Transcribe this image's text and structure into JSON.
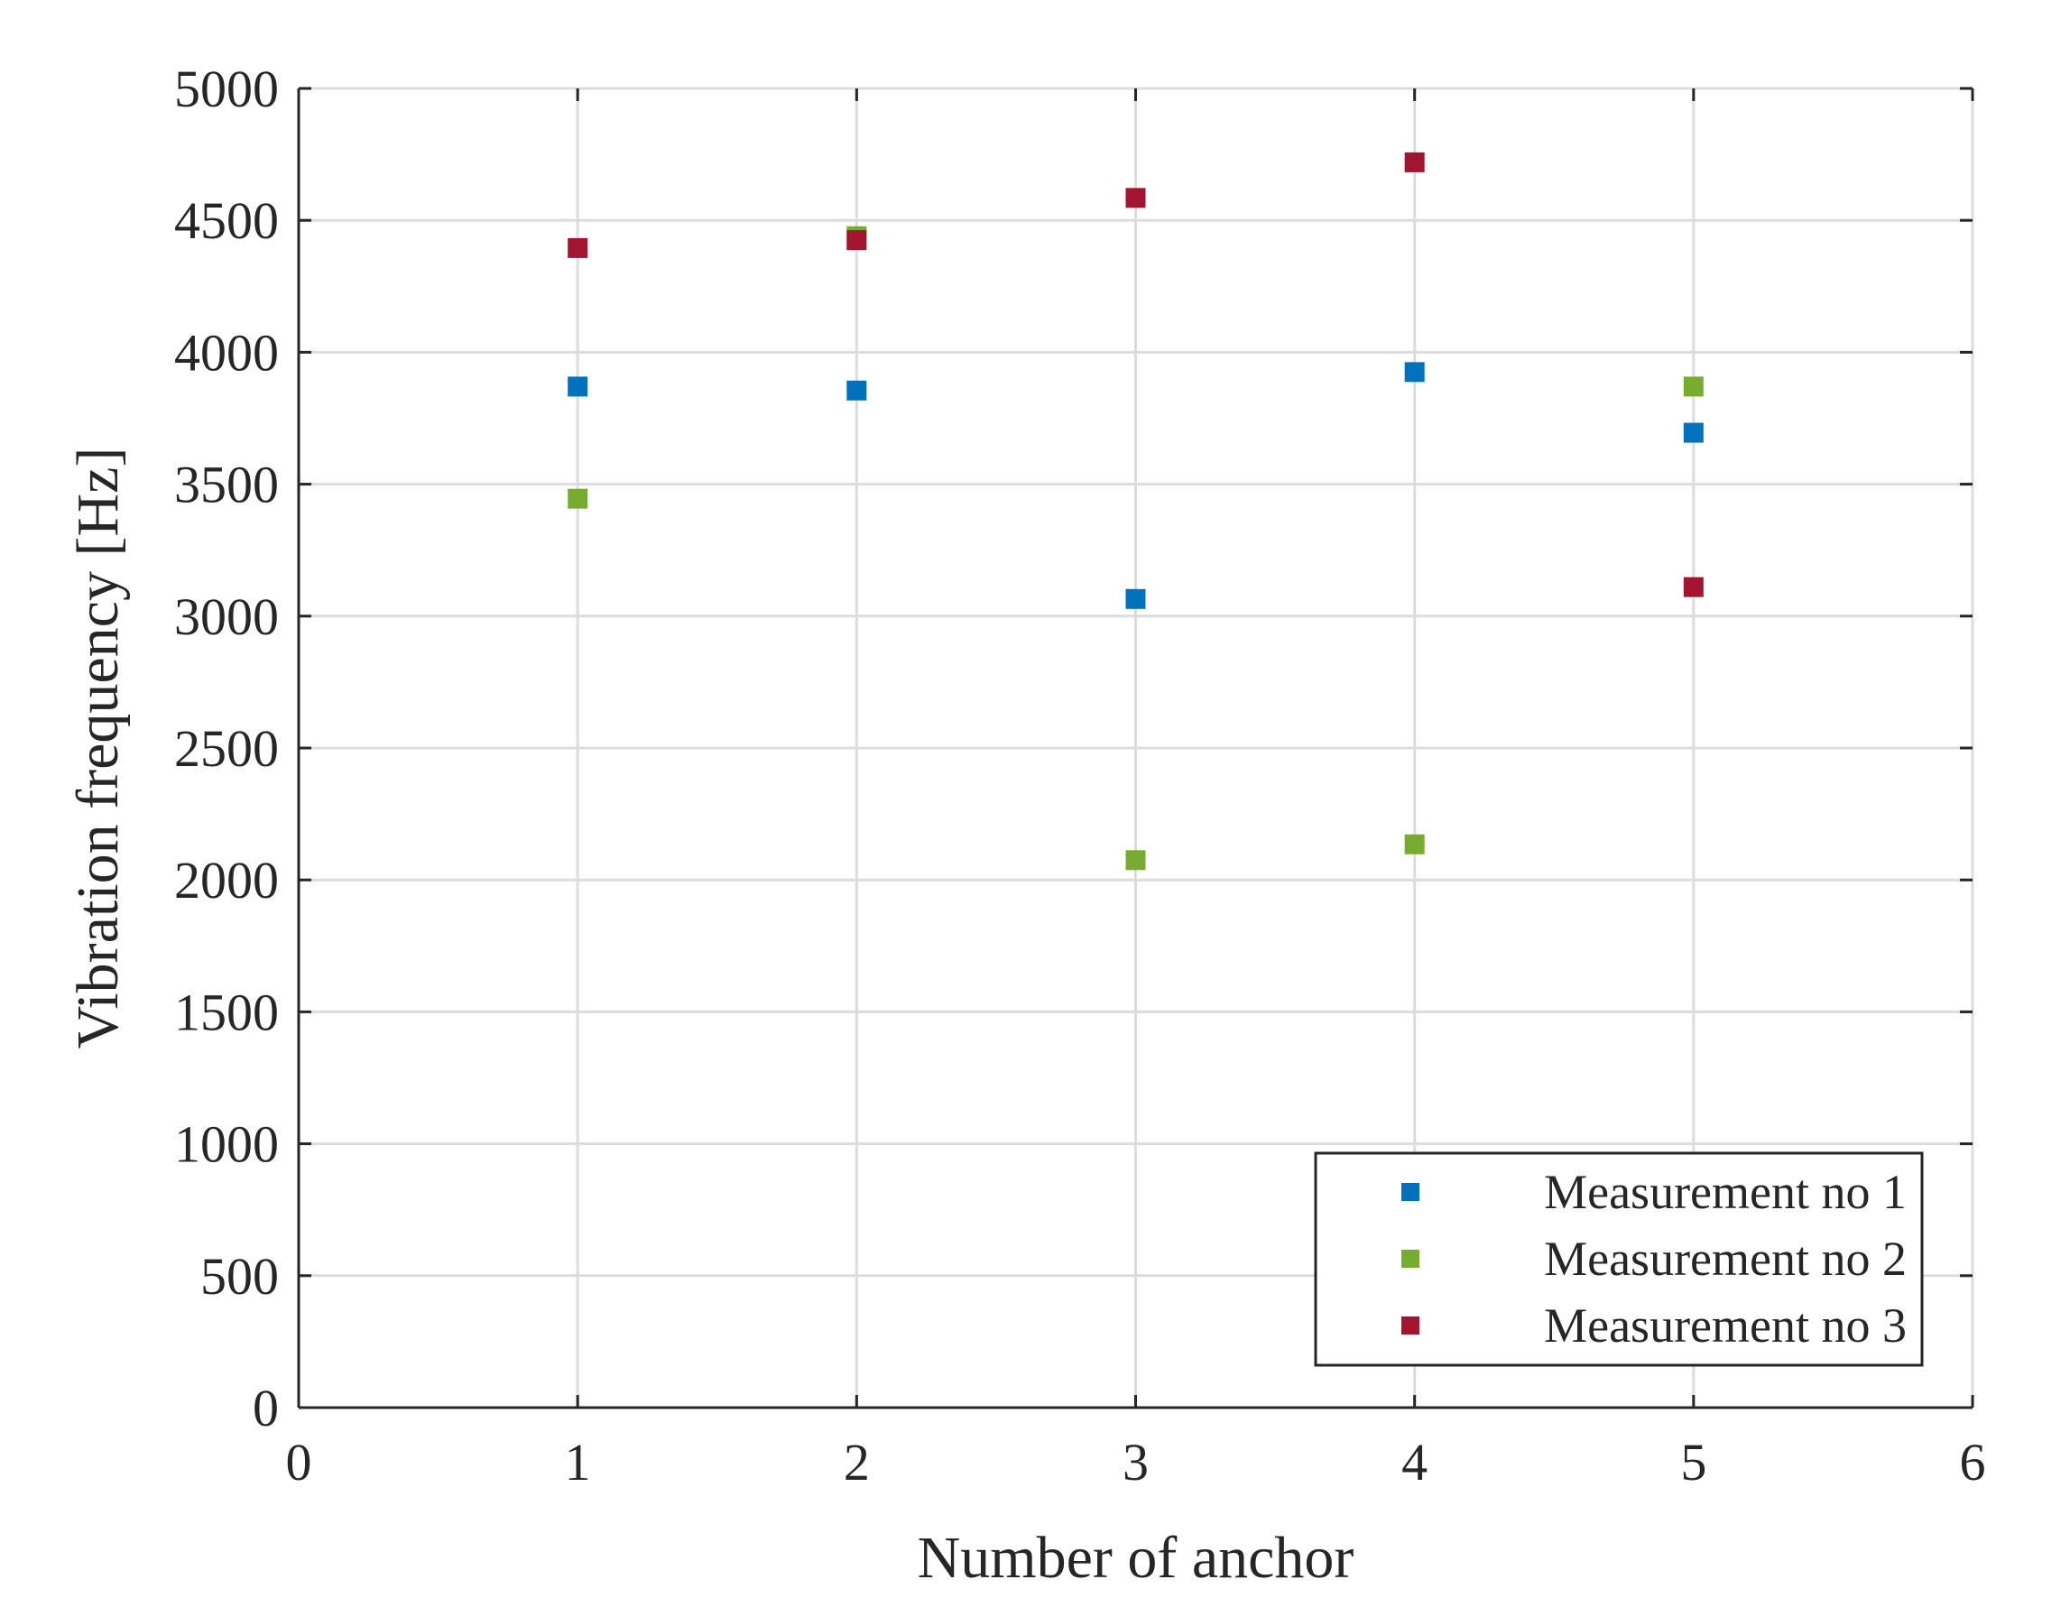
{
  "chart_data": {
    "type": "scatter",
    "title": "",
    "xlabel": "Number of anchor",
    "ylabel": "Vibration frequency [Hz]",
    "xlim": [
      0,
      6
    ],
    "ylim": [
      0,
      5000
    ],
    "xticks": [
      0,
      1,
      2,
      3,
      4,
      5,
      6
    ],
    "yticks": [
      0,
      500,
      1000,
      1500,
      2000,
      2500,
      3000,
      3500,
      4000,
      4500,
      5000
    ],
    "grid": true,
    "legend": "bottom-right",
    "marker": "square",
    "series": [
      {
        "name": "Measurement no 1",
        "color": "#0072BD",
        "x": [
          1,
          2,
          3,
          4,
          5
        ],
        "y": [
          3870,
          3855,
          3065,
          3925,
          3695
        ]
      },
      {
        "name": "Measurement no 2",
        "color": "#77AC30",
        "x": [
          1,
          2,
          3,
          4,
          5
        ],
        "y": [
          3445,
          4440,
          2075,
          2135,
          3870
        ]
      },
      {
        "name": "Measurement no 3",
        "color": "#A2142F",
        "x": [
          1,
          2,
          3,
          4,
          5
        ],
        "y": [
          4395,
          4425,
          4585,
          4720,
          3110
        ]
      }
    ]
  }
}
